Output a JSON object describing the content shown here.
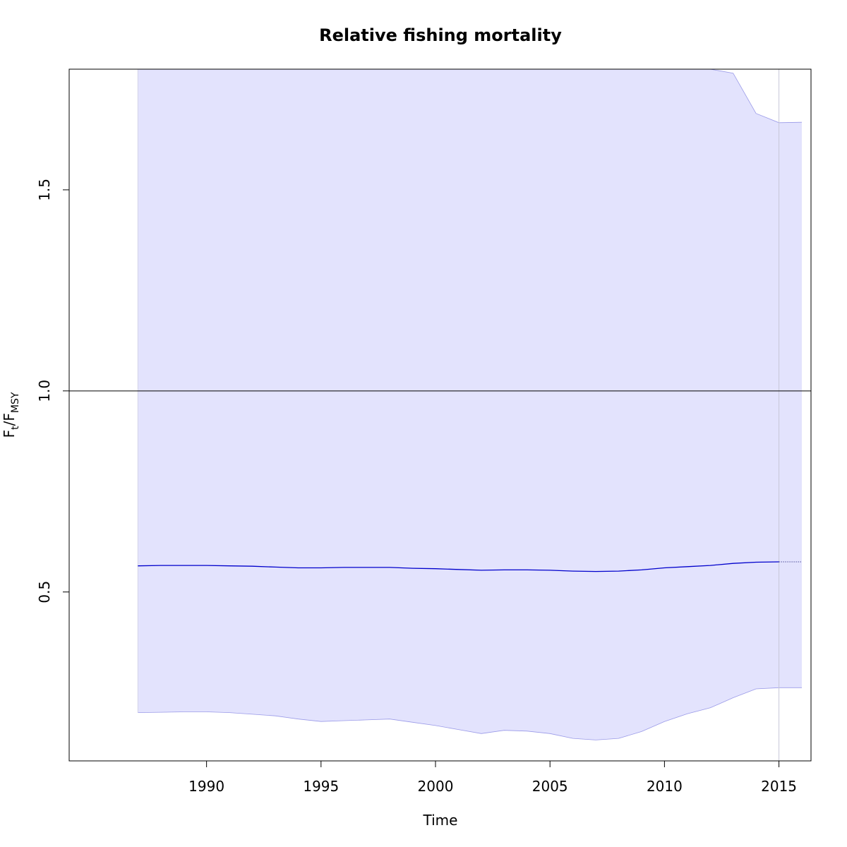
{
  "chart_data": {
    "type": "line",
    "title": "Relative fishing mortality",
    "xlabel": "Time",
    "ylabel": {
      "main": "F",
      "sub1": "t",
      "slash": "/F",
      "sub2": "MSY"
    },
    "xlim": [
      1984.0,
      2016.4
    ],
    "ylim": [
      0.08,
      1.8
    ],
    "xticks": [
      1990,
      1995,
      2000,
      2005,
      2010,
      2015
    ],
    "yticks": [
      0.5,
      1.0,
      1.5
    ],
    "reference_line": {
      "y": 1.0,
      "color": "#000000"
    },
    "current_year_line": {
      "x": 2015,
      "color": "#c8c8d8"
    },
    "band_color": "#e3e3fd",
    "band_edge_color": "#9a9ae8",
    "line_color": "#0000cc",
    "series": [
      {
        "x": [
          1987,
          1988,
          1989,
          1990,
          1991,
          1992,
          1993,
          1994,
          1995,
          1996,
          1997,
          1998,
          1999,
          2000,
          2001,
          2002,
          2003,
          2004,
          2005,
          2006,
          2007,
          2008,
          2009,
          2010,
          2011,
          2012,
          2013,
          2014,
          2015
        ],
        "values": [
          0.565,
          0.566,
          0.566,
          0.566,
          0.565,
          0.564,
          0.562,
          0.56,
          0.56,
          0.561,
          0.561,
          0.561,
          0.559,
          0.558,
          0.556,
          0.554,
          0.555,
          0.555,
          0.554,
          0.552,
          0.551,
          0.552,
          0.555,
          0.56,
          0.563,
          0.566,
          0.571,
          0.574,
          0.575
        ]
      }
    ],
    "projection": {
      "x": [
        2015,
        2016
      ],
      "values": [
        0.575,
        0.575
      ]
    },
    "band": {
      "x": [
        1987,
        1988,
        1989,
        1990,
        1991,
        1992,
        1993,
        1994,
        1995,
        1996,
        1997,
        1998,
        1999,
        2000,
        2001,
        2002,
        2003,
        2004,
        2005,
        2006,
        2007,
        2008,
        2009,
        2010,
        2011,
        2012,
        2013,
        2014,
        2015,
        2016
      ],
      "lower": [
        0.2,
        0.201,
        0.202,
        0.202,
        0.2,
        0.196,
        0.192,
        0.184,
        0.178,
        0.18,
        0.182,
        0.184,
        0.176,
        0.168,
        0.158,
        0.148,
        0.156,
        0.154,
        0.148,
        0.136,
        0.132,
        0.136,
        0.153,
        0.178,
        0.197,
        0.212,
        0.237,
        0.259,
        0.262,
        0.262
      ],
      "upper": [
        1.8,
        1.8,
        1.8,
        1.8,
        1.8,
        1.8,
        1.8,
        1.8,
        1.8,
        1.8,
        1.8,
        1.8,
        1.8,
        1.8,
        1.8,
        1.8,
        1.8,
        1.8,
        1.8,
        1.8,
        1.8,
        1.8,
        1.8,
        1.8,
        1.8,
        1.8,
        1.79,
        1.69,
        1.667,
        1.668
      ]
    }
  }
}
